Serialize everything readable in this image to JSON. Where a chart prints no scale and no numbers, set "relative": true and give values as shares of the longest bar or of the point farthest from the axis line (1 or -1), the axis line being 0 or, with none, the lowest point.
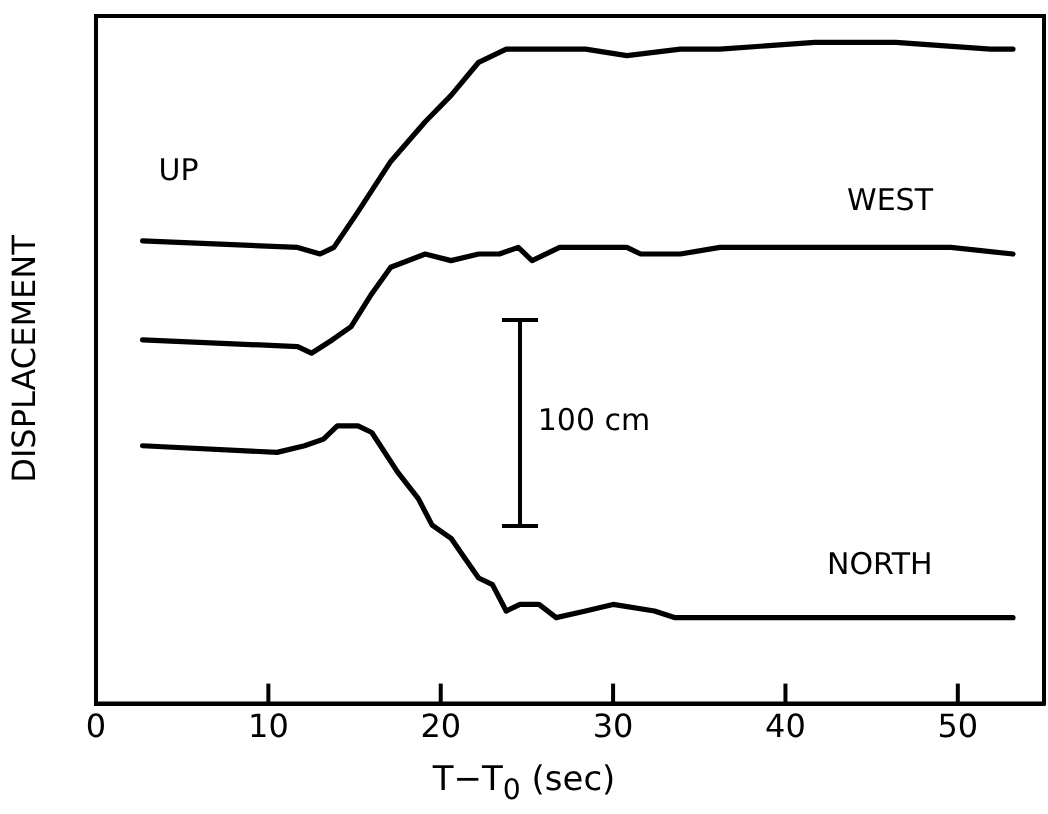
{
  "chart_data": {
    "type": "line",
    "xlabel": "T−T$_{0}$ (sec)",
    "ylabel": "DISPLACEMENT",
    "relative": true,
    "xlim": [
      0,
      55
    ],
    "xticks": [
      0,
      10,
      20,
      30,
      40,
      50
    ],
    "grid": false,
    "legend": false,
    "marker": "none",
    "line_style": "solid",
    "annotations": [
      "100 cm"
    ],
    "series": [
      {
        "name": "UP",
        "color": "#000000",
        "x": [
          2.7,
          11.7,
          13.0,
          13.8,
          15.1,
          17.1,
          19.1,
          20.6,
          22.2,
          23.8,
          24.5,
          26.1,
          28.4,
          30.8,
          33.9,
          36.2,
          41.7,
          46.4,
          51.9,
          53.2
        ],
        "values": [
          0.7,
          0.69,
          0.68,
          0.69,
          0.74,
          0.82,
          0.88,
          0.92,
          0.97,
          0.99,
          0.99,
          0.99,
          0.99,
          0.98,
          0.99,
          0.99,
          1.0,
          1.0,
          0.99,
          0.99
        ]
      },
      {
        "name": "WEST",
        "color": "#000000",
        "x": [
          2.7,
          11.7,
          12.5,
          13.7,
          14.8,
          16.0,
          17.1,
          19.1,
          20.6,
          22.2,
          23.4,
          24.5,
          25.3,
          26.9,
          28.4,
          30.8,
          31.6,
          33.9,
          36.2,
          37.9,
          41.7,
          47.6,
          49.6,
          53.2
        ],
        "values": [
          0.55,
          0.54,
          0.53,
          0.55,
          0.57,
          0.62,
          0.66,
          0.68,
          0.67,
          0.68,
          0.68,
          0.69,
          0.67,
          0.69,
          0.69,
          0.69,
          0.68,
          0.68,
          0.69,
          0.69,
          0.69,
          0.69,
          0.69,
          0.68
        ]
      },
      {
        "name": "NORTH",
        "color": "#000000",
        "x": [
          2.7,
          10.5,
          12.1,
          13.2,
          14.0,
          15.2,
          16.0,
          17.5,
          18.7,
          19.5,
          20.6,
          21.4,
          22.2,
          23.0,
          23.8,
          24.6,
          25.7,
          26.7,
          28.4,
          30.0,
          32.4,
          33.6,
          35.1,
          36.3,
          39.8,
          45.7,
          49.6,
          53.2
        ],
        "values": [
          0.39,
          0.38,
          0.39,
          0.4,
          0.42,
          0.42,
          0.41,
          0.35,
          0.31,
          0.27,
          0.25,
          0.22,
          0.19,
          0.18,
          0.14,
          0.15,
          0.15,
          0.13,
          0.14,
          0.15,
          0.14,
          0.13,
          0.13,
          0.13,
          0.13,
          0.13,
          0.13,
          0.13
        ]
      }
    ]
  }
}
